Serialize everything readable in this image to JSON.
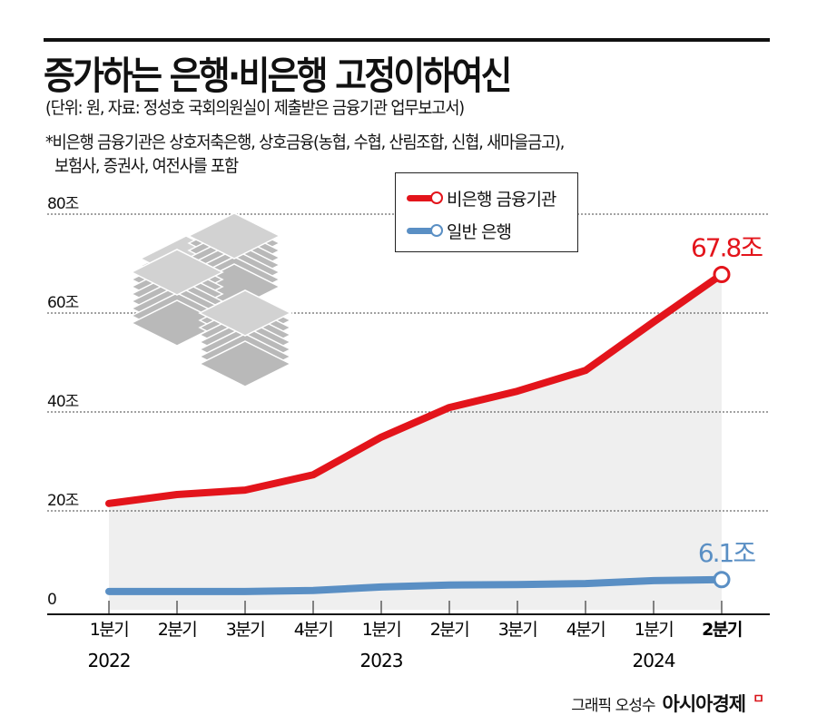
{
  "title": "증가하는 은행·비은행 고정이하여신",
  "subtitle": "(단위: 원, 자료: 정성호 국회의원실이 제출받은 금융기관 업무보고서)",
  "note_line1": "*비은행 금융기관은 상호저축은행, 상호금융(농협, 수협, 산림조합, 신협, 새마을금고),",
  "note_line2": "보험사, 증권사, 여전사를 포함",
  "footer": {
    "credit": "그래픽 오성수",
    "brand": "아시아경제"
  },
  "chart_data": {
    "type": "line",
    "categories": [
      "1분기",
      "2분기",
      "3분기",
      "4분기",
      "1분기",
      "2분기",
      "3분기",
      "4분기",
      "1분기",
      "2분기"
    ],
    "year_labels": [
      {
        "index": 0,
        "label": "2022"
      },
      {
        "index": 4,
        "label": "2023"
      },
      {
        "index": 8,
        "label": "2024"
      }
    ],
    "y_ticks": [
      {
        "value": 0,
        "label": "0"
      },
      {
        "value": 20,
        "label": "20조"
      },
      {
        "value": 40,
        "label": "40조"
      },
      {
        "value": 60,
        "label": "60조"
      },
      {
        "value": 80,
        "label": "80조"
      }
    ],
    "ylim": [
      0,
      80
    ],
    "grid": true,
    "legend_position": "top-center",
    "series": [
      {
        "name": "비은행 금융기관",
        "color": "#e3141b",
        "values": [
          21.5,
          23.3,
          24.2,
          27.3,
          34.9,
          40.9,
          44.2,
          48.4,
          58.2,
          67.8
        ],
        "end_label": "67.8조"
      },
      {
        "name": "일반 은행",
        "color": "#5a8fc4",
        "values": [
          3.7,
          3.7,
          3.7,
          3.9,
          4.6,
          5.0,
          5.1,
          5.3,
          5.9,
          6.1
        ],
        "end_label": "6.1조"
      }
    ],
    "area_color": "#efefef",
    "decoration": "money-stacks-icon"
  }
}
